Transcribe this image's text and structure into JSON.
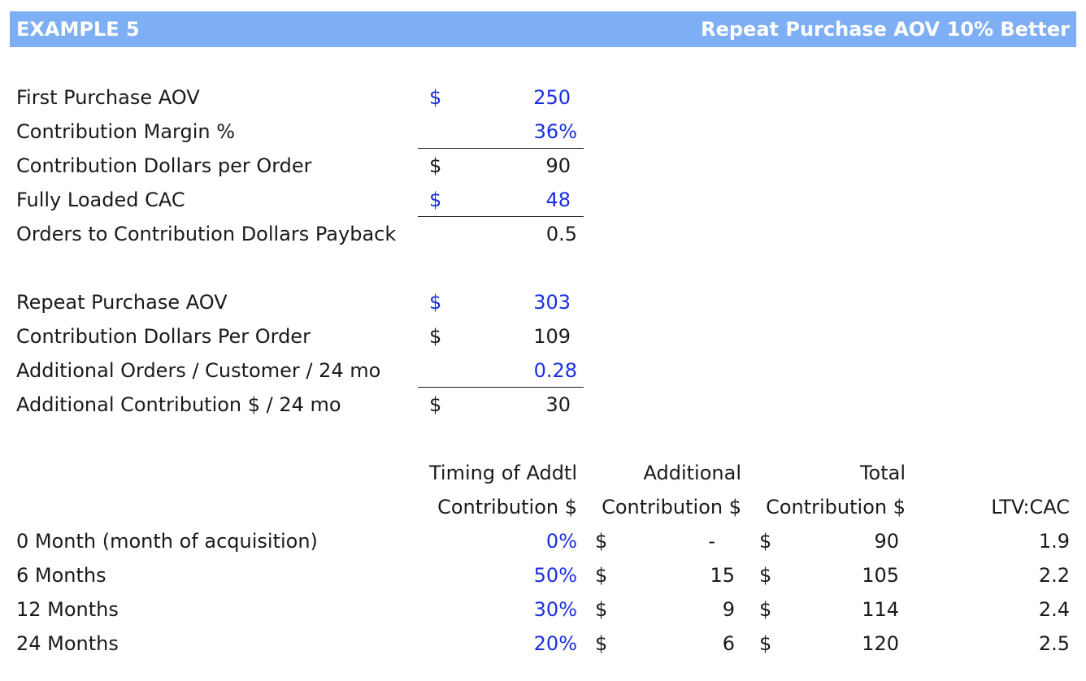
{
  "header": {
    "left": "EXAMPLE 5",
    "right": "Repeat Purchase AOV 10% Better"
  },
  "colors": {
    "header_bg": "#7eaef3",
    "input_blue": "#1a2fe0"
  },
  "first": {
    "aov_label": "First Purchase AOV",
    "aov_cur": "$",
    "aov_val": "250",
    "cm_label": "Contribution Margin %",
    "cm_val": "36%",
    "cdo_label": "Contribution Dollars per Order",
    "cdo_cur": "$",
    "cdo_val": "90",
    "cac_label": "Fully Loaded CAC",
    "cac_cur": "$",
    "cac_val": "48",
    "payback_label": "Orders to Contribution Dollars Payback",
    "payback_val": "0.5"
  },
  "repeat": {
    "aov_label": "Repeat Purchase AOV",
    "aov_cur": "$",
    "aov_val": "303",
    "cdo_label": "Contribution Dollars Per Order",
    "cdo_cur": "$",
    "cdo_val": "109",
    "orders_label": "Additional Orders / Customer / 24 mo",
    "orders_val": "0.28",
    "contrib_label": "Additional Contribution $ / 24 mo",
    "contrib_cur": "$",
    "contrib_val": "30"
  },
  "timing": {
    "headers": {
      "timing_1": "Timing of Addtl",
      "timing_2": "Contribution $",
      "add_1": "Additional",
      "add_2": "Contribution $",
      "total_1": "Total",
      "total_2": "Contribution $",
      "ltv": "LTV:CAC"
    },
    "rows": [
      {
        "label": "0 Month (month of acquisition)",
        "timing": "0%",
        "add_cur": "$",
        "add_val": "-",
        "total_cur": "$",
        "total_val": "90",
        "ltv": "1.9"
      },
      {
        "label": "6 Months",
        "timing": "50%",
        "add_cur": "$",
        "add_val": "15",
        "total_cur": "$",
        "total_val": "105",
        "ltv": "2.2"
      },
      {
        "label": "12 Months",
        "timing": "30%",
        "add_cur": "$",
        "add_val": "9",
        "total_cur": "$",
        "total_val": "114",
        "ltv": "2.4"
      },
      {
        "label": "24 Months",
        "timing": "20%",
        "add_cur": "$",
        "add_val": "6",
        "total_cur": "$",
        "total_val": "120",
        "ltv": "2.5"
      }
    ]
  }
}
